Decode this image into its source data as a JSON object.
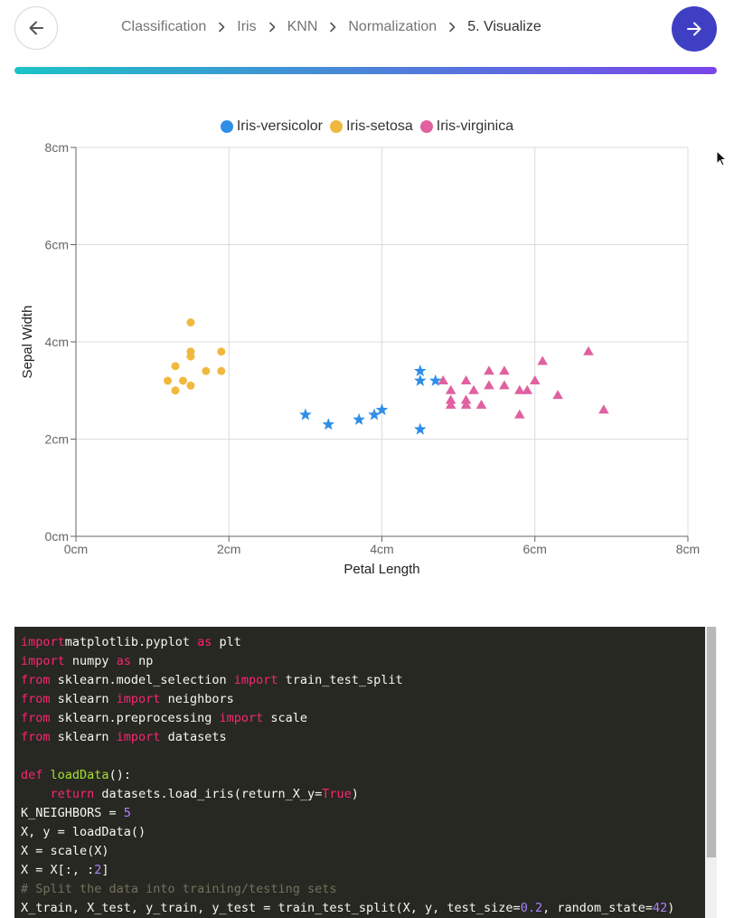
{
  "nav": {
    "breadcrumb": [
      {
        "label": "Classification",
        "current": false
      },
      {
        "label": "Iris",
        "current": false
      },
      {
        "label": "KNN",
        "current": false
      },
      {
        "label": "Normalization",
        "current": false
      },
      {
        "label": "5. Visualize",
        "current": true
      }
    ],
    "back_icon": "arrow-left-icon",
    "next_icon": "arrow-right-icon",
    "progress": 1.0,
    "progress_colors": [
      "#1cc3c6",
      "#7a45ea"
    ],
    "accent": "#3f3fc4"
  },
  "chart_data": {
    "type": "scatter",
    "xlabel": "Petal Length",
    "ylabel": "Sepal Width",
    "xlim": [
      0,
      8
    ],
    "ylim": [
      0,
      8
    ],
    "x_ticks": [
      "0cm",
      "2cm",
      "4cm",
      "6cm",
      "8cm"
    ],
    "y_ticks": [
      "0cm",
      "2cm",
      "4cm",
      "6cm",
      "8cm"
    ],
    "grid": true,
    "legend_position": "top-center",
    "series": [
      {
        "name": "Iris-versicolor",
        "color": "#2f8ee8",
        "marker": "star",
        "points": [
          [
            3.0,
            2.5
          ],
          [
            3.3,
            2.3
          ],
          [
            3.7,
            2.4
          ],
          [
            3.9,
            2.5
          ],
          [
            4.0,
            2.6
          ],
          [
            4.5,
            3.4
          ],
          [
            4.5,
            3.2
          ],
          [
            4.7,
            3.2
          ],
          [
            4.5,
            2.2
          ]
        ]
      },
      {
        "name": "Iris-setosa",
        "color": "#f0b93e",
        "marker": "circle",
        "points": [
          [
            1.2,
            3.2
          ],
          [
            1.3,
            3.5
          ],
          [
            1.3,
            3.0
          ],
          [
            1.4,
            3.2
          ],
          [
            1.5,
            4.4
          ],
          [
            1.5,
            3.8
          ],
          [
            1.5,
            3.7
          ],
          [
            1.5,
            3.1
          ],
          [
            1.7,
            3.4
          ],
          [
            1.9,
            3.8
          ],
          [
            1.9,
            3.4
          ]
        ]
      },
      {
        "name": "Iris-virginica",
        "color": "#e060a0",
        "marker": "triangle",
        "points": [
          [
            4.8,
            3.2
          ],
          [
            4.9,
            3.0
          ],
          [
            4.9,
            2.8
          ],
          [
            4.9,
            2.7
          ],
          [
            5.1,
            3.2
          ],
          [
            5.1,
            2.8
          ],
          [
            5.1,
            2.7
          ],
          [
            5.2,
            3.0
          ],
          [
            5.3,
            2.7
          ],
          [
            5.4,
            3.4
          ],
          [
            5.4,
            3.1
          ],
          [
            5.6,
            3.4
          ],
          [
            5.6,
            3.1
          ],
          [
            5.8,
            3.0
          ],
          [
            5.8,
            2.5
          ],
          [
            5.9,
            3.0
          ],
          [
            6.0,
            3.2
          ],
          [
            6.1,
            3.6
          ],
          [
            6.3,
            2.9
          ],
          [
            6.7,
            3.8
          ],
          [
            6.9,
            2.6
          ]
        ]
      }
    ]
  },
  "code": {
    "lines": [
      [
        [
          "kw",
          "import"
        ],
        [
          "",
          "matplotlib.pyplot "
        ],
        [
          "kw",
          "as"
        ],
        [
          "",
          " plt"
        ]
      ],
      [
        [
          "kw",
          "import"
        ],
        [
          "",
          " numpy "
        ],
        [
          "kw",
          "as"
        ],
        [
          "",
          " np"
        ]
      ],
      [
        [
          "kw",
          "from"
        ],
        [
          "",
          " sklearn.model_selection "
        ],
        [
          "kw",
          "import"
        ],
        [
          "",
          " train_test_split"
        ]
      ],
      [
        [
          "kw",
          "from"
        ],
        [
          "",
          " sklearn "
        ],
        [
          "kw",
          "import"
        ],
        [
          "",
          " neighbors"
        ]
      ],
      [
        [
          "kw",
          "from"
        ],
        [
          "",
          " sklearn.preprocessing "
        ],
        [
          "kw",
          "import"
        ],
        [
          "",
          " scale"
        ]
      ],
      [
        [
          "kw",
          "from"
        ],
        [
          "",
          " sklearn "
        ],
        [
          "kw",
          "import"
        ],
        [
          "",
          " datasets"
        ]
      ],
      [],
      [
        [
          "kw",
          "def"
        ],
        [
          "",
          " "
        ],
        [
          "fn",
          "loadData"
        ],
        [
          "",
          "():"
        ]
      ],
      [
        [
          "",
          "    "
        ],
        [
          "kw",
          "return"
        ],
        [
          "",
          " datasets.load_iris(return_X_y="
        ],
        [
          "kw",
          "True"
        ],
        [
          "",
          ")"
        ]
      ],
      [
        [
          "",
          "K_NEIGHBORS = "
        ],
        [
          "num",
          "5"
        ]
      ],
      [
        [
          "",
          "X, y = loadData()"
        ]
      ],
      [
        [
          "",
          "X = scale(X)"
        ]
      ],
      [
        [
          "",
          "X = X[:, :"
        ],
        [
          "num",
          "2"
        ],
        [
          "",
          "]"
        ]
      ],
      [
        [
          "cm",
          "# Split the data into training/testing sets"
        ]
      ],
      [
        [
          "",
          "X_train, X_test, y_train, y_test = train_test_split(X, y, test_size="
        ],
        [
          "num",
          "0.2"
        ],
        [
          "",
          ", random_state="
        ],
        [
          "num",
          "42"
        ],
        [
          "",
          ")"
        ]
      ]
    ]
  }
}
